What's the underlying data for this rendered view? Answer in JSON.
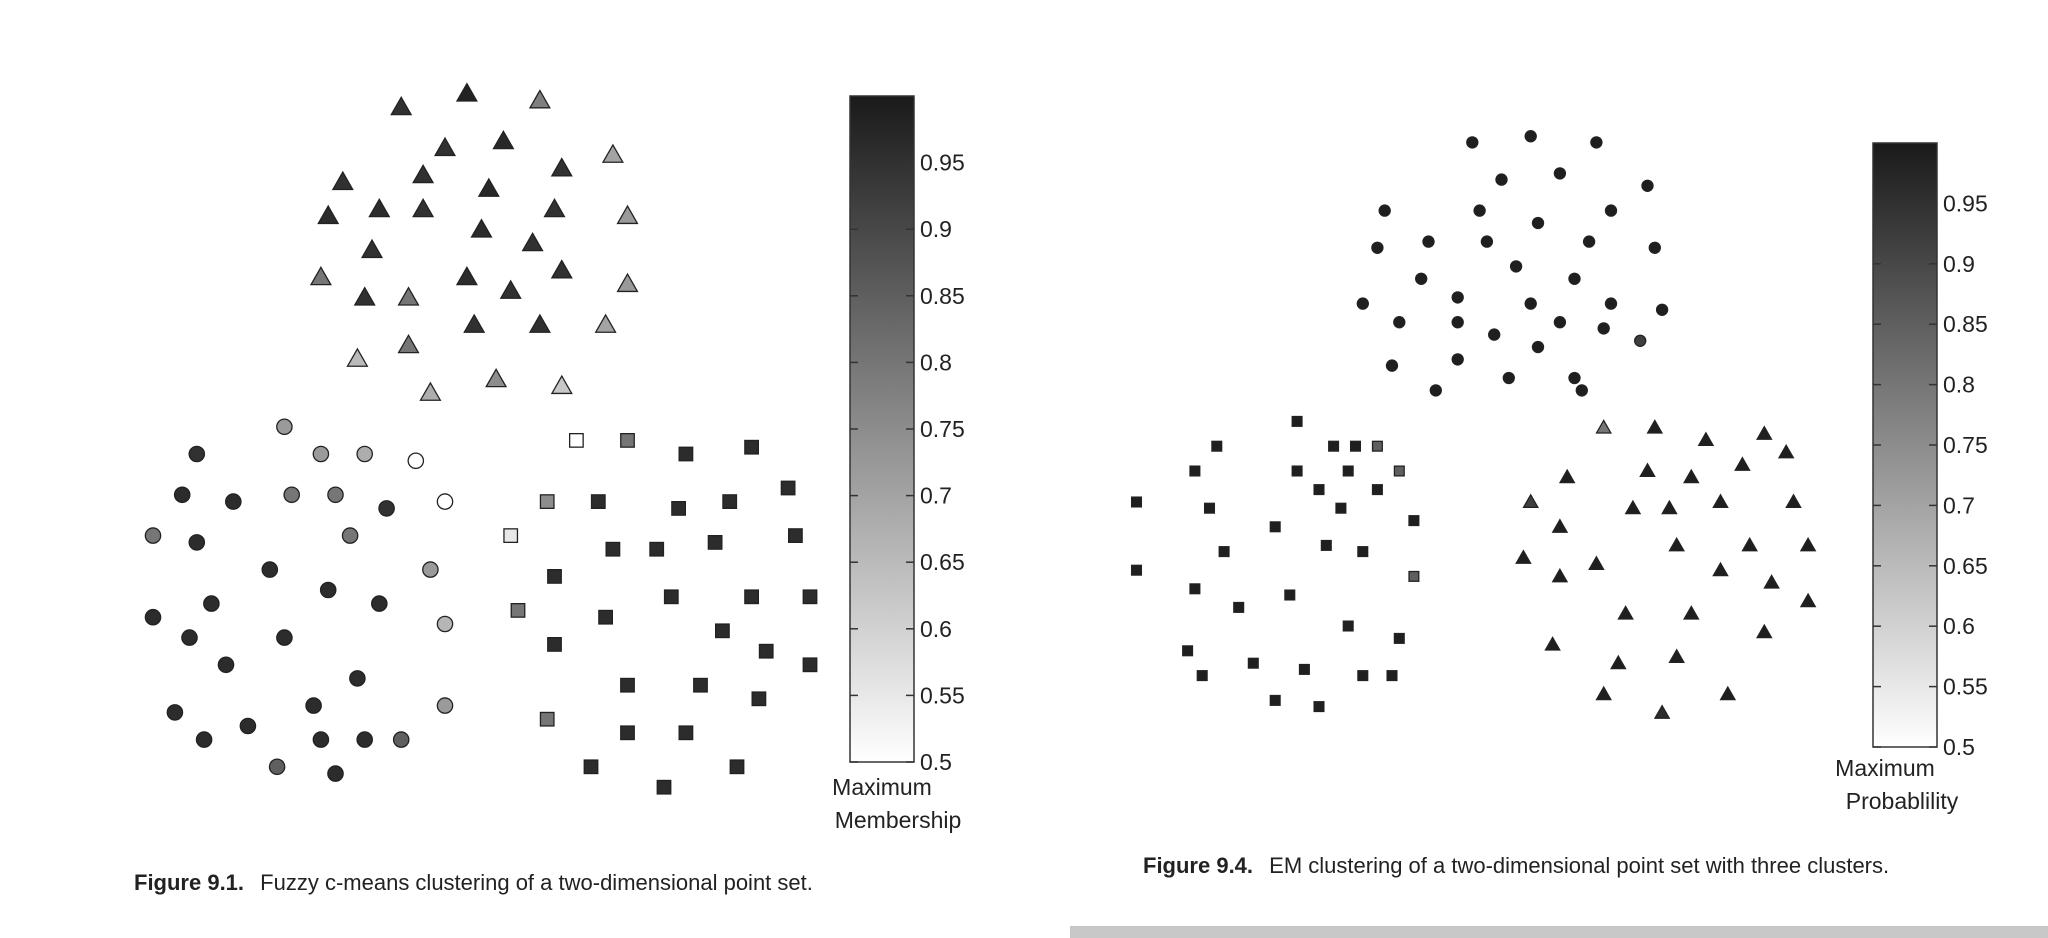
{
  "chart_data": [
    {
      "type": "scatter",
      "caption_label": "Figure 9.1.",
      "caption_text": "Fuzzy c-means clustering of a two-dimensional point set.",
      "colorbar": {
        "title_lines": [
          "Maximum",
          "Membership"
        ],
        "range": [
          0.5,
          1.0
        ],
        "ticks": [
          0.5,
          0.55,
          0.6,
          0.65,
          0.7,
          0.75,
          0.8,
          0.85,
          0.9,
          0.95
        ],
        "colormap": [
          "#ffffff",
          "#1a1a1a"
        ]
      },
      "series": [
        {
          "marker": "triangle",
          "points": [
            [
              4.4,
              9.6,
              0.95
            ],
            [
              5.3,
              9.8,
              0.98
            ],
            [
              6.3,
              9.7,
              0.78
            ],
            [
              5.0,
              9.0,
              0.95
            ],
            [
              5.8,
              9.1,
              0.97
            ],
            [
              7.3,
              8.9,
              0.7
            ],
            [
              3.6,
              8.5,
              0.95
            ],
            [
              4.7,
              8.6,
              0.95
            ],
            [
              5.6,
              8.4,
              0.97
            ],
            [
              6.6,
              8.7,
              0.95
            ],
            [
              3.4,
              8.0,
              0.96
            ],
            [
              4.1,
              8.1,
              0.96
            ],
            [
              4.7,
              8.1,
              0.95
            ],
            [
              5.5,
              7.8,
              0.96
            ],
            [
              6.5,
              8.1,
              0.95
            ],
            [
              7.5,
              8.0,
              0.72
            ],
            [
              4.0,
              7.5,
              0.95
            ],
            [
              6.2,
              7.6,
              0.95
            ],
            [
              3.3,
              7.1,
              0.8
            ],
            [
              5.3,
              7.1,
              0.96
            ],
            [
              6.6,
              7.2,
              0.95
            ],
            [
              7.5,
              7.0,
              0.72
            ],
            [
              3.9,
              6.8,
              0.95
            ],
            [
              4.5,
              6.8,
              0.8
            ],
            [
              5.9,
              6.9,
              0.95
            ],
            [
              5.4,
              6.4,
              0.95
            ],
            [
              6.3,
              6.4,
              0.95
            ],
            [
              7.2,
              6.4,
              0.7
            ],
            [
              4.5,
              6.1,
              0.8
            ],
            [
              3.8,
              5.9,
              0.65
            ],
            [
              5.7,
              5.6,
              0.75
            ],
            [
              4.8,
              5.4,
              0.68
            ],
            [
              6.6,
              5.5,
              0.62
            ]
          ]
        },
        {
          "marker": "circle",
          "points": [
            [
              2.8,
              4.9,
              0.72
            ],
            [
              3.3,
              4.5,
              0.72
            ],
            [
              3.9,
              4.5,
              0.68
            ],
            [
              4.6,
              4.4,
              0.5
            ],
            [
              1.6,
              4.5,
              0.95
            ],
            [
              1.4,
              3.9,
              0.96
            ],
            [
              2.1,
              3.8,
              0.96
            ],
            [
              2.9,
              3.9,
              0.8
            ],
            [
              3.5,
              3.9,
              0.8
            ],
            [
              4.2,
              3.7,
              0.95
            ],
            [
              5.0,
              3.8,
              0.5
            ],
            [
              1.0,
              3.3,
              0.8
            ],
            [
              1.6,
              3.2,
              0.96
            ],
            [
              3.7,
              3.3,
              0.8
            ],
            [
              2.6,
              2.8,
              0.96
            ],
            [
              4.8,
              2.8,
              0.72
            ],
            [
              1.8,
              2.3,
              0.96
            ],
            [
              3.4,
              2.5,
              0.96
            ],
            [
              4.1,
              2.3,
              0.96
            ],
            [
              1.0,
              2.1,
              0.96
            ],
            [
              1.5,
              1.8,
              0.96
            ],
            [
              2.8,
              1.8,
              0.96
            ],
            [
              5.0,
              2.0,
              0.66
            ],
            [
              2.0,
              1.4,
              0.96
            ],
            [
              3.8,
              1.2,
              0.96
            ],
            [
              1.3,
              0.7,
              0.96
            ],
            [
              3.2,
              0.8,
              0.96
            ],
            [
              5.0,
              0.8,
              0.72
            ],
            [
              2.3,
              0.5,
              0.96
            ],
            [
              1.7,
              0.3,
              0.96
            ],
            [
              3.3,
              0.3,
              0.96
            ],
            [
              3.9,
              0.3,
              0.96
            ],
            [
              4.4,
              0.3,
              0.85
            ],
            [
              2.7,
              -0.1,
              0.85
            ],
            [
              3.5,
              -0.2,
              0.96
            ]
          ]
        },
        {
          "marker": "square",
          "points": [
            [
              6.8,
              4.7,
              0.5
            ],
            [
              7.5,
              4.7,
              0.8
            ],
            [
              8.3,
              4.5,
              0.96
            ],
            [
              9.2,
              4.6,
              0.96
            ],
            [
              6.4,
              3.8,
              0.75
            ],
            [
              7.1,
              3.8,
              0.96
            ],
            [
              8.2,
              3.7,
              0.96
            ],
            [
              8.9,
              3.8,
              0.96
            ],
            [
              9.7,
              4.0,
              0.96
            ],
            [
              5.9,
              3.3,
              0.55
            ],
            [
              7.3,
              3.1,
              0.96
            ],
            [
              7.9,
              3.1,
              0.96
            ],
            [
              8.7,
              3.2,
              0.96
            ],
            [
              9.8,
              3.3,
              0.96
            ],
            [
              6.5,
              2.7,
              0.96
            ],
            [
              6.0,
              2.2,
              0.8
            ],
            [
              7.2,
              2.1,
              0.96
            ],
            [
              8.1,
              2.4,
              0.96
            ],
            [
              9.2,
              2.4,
              0.96
            ],
            [
              10.0,
              2.4,
              0.96
            ],
            [
              6.5,
              1.7,
              0.96
            ],
            [
              8.8,
              1.9,
              0.96
            ],
            [
              9.4,
              1.6,
              0.96
            ],
            [
              10.0,
              1.4,
              0.96
            ],
            [
              7.5,
              1.1,
              0.96
            ],
            [
              8.5,
              1.1,
              0.96
            ],
            [
              9.3,
              0.9,
              0.96
            ],
            [
              6.4,
              0.6,
              0.8
            ],
            [
              7.5,
              0.4,
              0.96
            ],
            [
              8.3,
              0.4,
              0.96
            ],
            [
              7.0,
              -0.1,
              0.96
            ],
            [
              8.0,
              -0.4,
              0.96
            ],
            [
              9.0,
              -0.1,
              0.96
            ]
          ]
        }
      ]
    },
    {
      "type": "scatter",
      "caption_label": "Figure 9.4.",
      "caption_text": "EM clustering of a two-dimensional point set with three clusters.",
      "colorbar": {
        "title_lines": [
          "Maximum",
          "Probablility"
        ],
        "range": [
          0.5,
          1.0
        ],
        "ticks": [
          0.5,
          0.55,
          0.6,
          0.65,
          0.7,
          0.75,
          0.8,
          0.85,
          0.9,
          0.95
        ],
        "colormap": [
          "#ffffff",
          "#1a1a1a"
        ]
      },
      "series": [
        {
          "marker": "circle",
          "points": [
            [
              5.1,
              9.8,
              0.99
            ],
            [
              5.9,
              9.9,
              0.99
            ],
            [
              6.8,
              9.8,
              0.99
            ],
            [
              5.5,
              9.2,
              0.99
            ],
            [
              6.3,
              9.3,
              0.99
            ],
            [
              7.5,
              9.1,
              0.99
            ],
            [
              3.9,
              8.7,
              0.99
            ],
            [
              5.2,
              8.7,
              0.99
            ],
            [
              6.0,
              8.5,
              0.99
            ],
            [
              7.0,
              8.7,
              0.99
            ],
            [
              3.8,
              8.1,
              0.99
            ],
            [
              4.5,
              8.2,
              0.99
            ],
            [
              5.3,
              8.2,
              0.99
            ],
            [
              6.7,
              8.2,
              0.99
            ],
            [
              7.6,
              8.1,
              0.99
            ],
            [
              4.4,
              7.6,
              0.99
            ],
            [
              5.7,
              7.8,
              0.99
            ],
            [
              6.5,
              7.6,
              0.99
            ],
            [
              3.6,
              7.2,
              0.99
            ],
            [
              4.9,
              7.3,
              0.99
            ],
            [
              5.9,
              7.2,
              0.99
            ],
            [
              7.0,
              7.2,
              0.99
            ],
            [
              7.7,
              7.1,
              0.99
            ],
            [
              4.1,
              6.9,
              0.99
            ],
            [
              4.9,
              6.9,
              0.99
            ],
            [
              6.3,
              6.9,
              0.99
            ],
            [
              6.9,
              6.8,
              0.99
            ],
            [
              5.4,
              6.7,
              0.99
            ],
            [
              6.0,
              6.5,
              0.99
            ],
            [
              7.4,
              6.6,
              0.92
            ],
            [
              4.0,
              6.2,
              0.99
            ],
            [
              4.9,
              6.3,
              0.99
            ],
            [
              5.6,
              6.0,
              0.99
            ],
            [
              6.5,
              6.0,
              0.99
            ],
            [
              4.6,
              5.8,
              0.99
            ],
            [
              6.6,
              5.8,
              0.99
            ]
          ]
        },
        {
          "marker": "square",
          "points": [
            [
              2.7,
              5.3,
              0.99
            ],
            [
              1.6,
              4.9,
              0.99
            ],
            [
              3.2,
              4.9,
              0.99
            ],
            [
              3.8,
              4.9,
              0.85
            ],
            [
              3.5,
              4.9,
              0.99
            ],
            [
              1.3,
              4.5,
              0.99
            ],
            [
              2.7,
              4.5,
              0.99
            ],
            [
              3.4,
              4.5,
              0.99
            ],
            [
              4.1,
              4.5,
              0.85
            ],
            [
              3.0,
              4.2,
              0.99
            ],
            [
              3.8,
              4.2,
              0.99
            ],
            [
              0.5,
              4.0,
              0.99
            ],
            [
              1.5,
              3.9,
              0.99
            ],
            [
              3.3,
              3.9,
              0.99
            ],
            [
              2.4,
              3.6,
              0.99
            ],
            [
              4.3,
              3.7,
              0.99
            ],
            [
              1.7,
              3.2,
              0.99
            ],
            [
              3.1,
              3.3,
              0.99
            ],
            [
              3.6,
              3.2,
              0.99
            ],
            [
              0.5,
              2.9,
              0.99
            ],
            [
              1.3,
              2.6,
              0.99
            ],
            [
              2.6,
              2.5,
              0.99
            ],
            [
              4.3,
              2.8,
              0.85
            ],
            [
              1.9,
              2.3,
              0.99
            ],
            [
              3.4,
              2.0,
              0.99
            ],
            [
              1.2,
              1.6,
              0.99
            ],
            [
              4.1,
              1.8,
              0.99
            ],
            [
              2.1,
              1.4,
              0.99
            ],
            [
              1.4,
              1.2,
              0.99
            ],
            [
              2.8,
              1.3,
              0.99
            ],
            [
              3.6,
              1.2,
              0.99
            ],
            [
              4.0,
              1.2,
              0.99
            ],
            [
              2.4,
              0.8,
              0.99
            ],
            [
              3.0,
              0.7,
              0.99
            ]
          ]
        },
        {
          "marker": "triangle",
          "points": [
            [
              6.9,
              5.2,
              0.8
            ],
            [
              7.6,
              5.2,
              0.99
            ],
            [
              8.3,
              5.0,
              0.99
            ],
            [
              9.1,
              5.1,
              0.99
            ],
            [
              6.4,
              4.4,
              0.99
            ],
            [
              7.5,
              4.5,
              0.99
            ],
            [
              8.1,
              4.4,
              0.99
            ],
            [
              8.8,
              4.6,
              0.99
            ],
            [
              9.4,
              4.8,
              0.99
            ],
            [
              5.9,
              4.0,
              0.92
            ],
            [
              7.3,
              3.9,
              0.99
            ],
            [
              7.8,
              3.9,
              0.99
            ],
            [
              8.5,
              4.0,
              0.99
            ],
            [
              9.5,
              4.0,
              0.99
            ],
            [
              6.3,
              3.6,
              0.99
            ],
            [
              5.8,
              3.1,
              0.99
            ],
            [
              6.8,
              3.0,
              0.99
            ],
            [
              7.9,
              3.3,
              0.99
            ],
            [
              8.9,
              3.3,
              0.99
            ],
            [
              9.7,
              3.3,
              0.99
            ],
            [
              6.3,
              2.8,
              0.99
            ],
            [
              8.5,
              2.9,
              0.99
            ],
            [
              9.2,
              2.7,
              0.99
            ],
            [
              9.7,
              2.4,
              0.99
            ],
            [
              7.2,
              2.2,
              0.99
            ],
            [
              8.1,
              2.2,
              0.99
            ],
            [
              9.1,
              1.9,
              0.99
            ],
            [
              6.2,
              1.7,
              0.99
            ],
            [
              7.1,
              1.4,
              0.99
            ],
            [
              7.9,
              1.5,
              0.99
            ],
            [
              6.9,
              0.9,
              0.99
            ],
            [
              7.7,
              0.6,
              0.96
            ],
            [
              8.6,
              0.9,
              0.99
            ]
          ]
        }
      ]
    }
  ]
}
